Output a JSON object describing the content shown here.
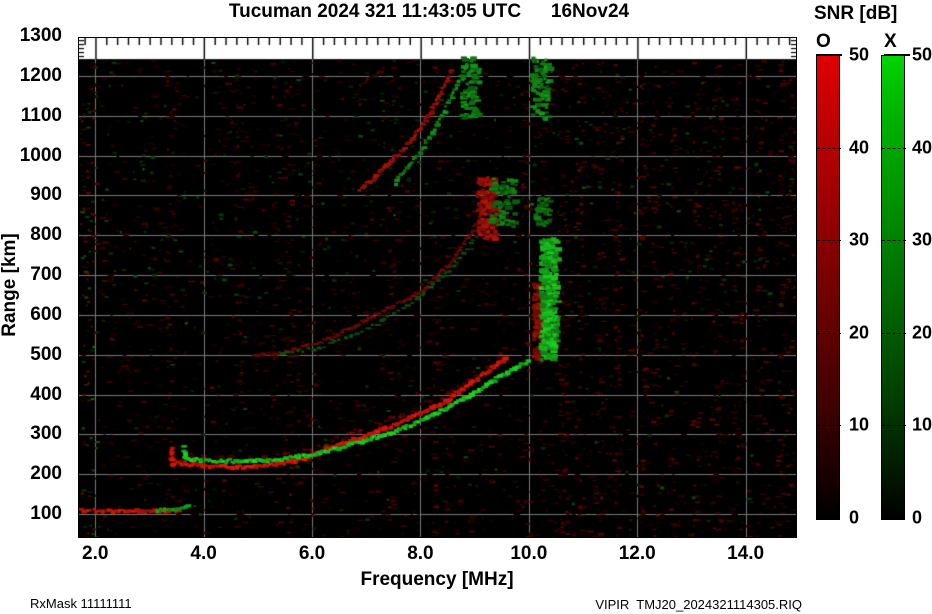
{
  "title": {
    "main": "Tucuman 2024 321 11:43:05 UTC",
    "date": "16Nov24"
  },
  "axes": {
    "x_label": "Frequency [MHz]",
    "y_label": "Range [km]",
    "x_ticks": [
      "2.0",
      "4.0",
      "6.0",
      "8.0",
      "10.0",
      "12.0",
      "14.0"
    ],
    "x_tick_values": [
      2,
      4,
      6,
      8,
      10,
      12,
      14
    ],
    "y_ticks": [
      100,
      200,
      300,
      400,
      500,
      600,
      700,
      800,
      900,
      1000,
      1100,
      1200,
      1300
    ],
    "x_range": [
      1.7,
      14.93
    ],
    "y_range": [
      42.5,
      1295
    ],
    "x_minor_step": 0.2,
    "y_edge_tick_step": 10,
    "grid": true
  },
  "footer": {
    "left": "RxMask 11111111",
    "right": "VIPIR  TMJ20_2024321114305.RIQ"
  },
  "colorbar": {
    "title": "SNR [dB]",
    "o_label": "O",
    "x_label": "X",
    "ticks": [
      50,
      40,
      30,
      20,
      10,
      0
    ],
    "min": 0,
    "max": 50
  },
  "colors": {
    "o_mode": "#e8190c",
    "x_mode": "#1edc23",
    "background": "#000000",
    "grid": "#7a7a7a"
  },
  "chart_data": {
    "type": "heatmap",
    "description": "VIPIR ionogram: echo SNR vs frequency and virtual range; O-mode red, X-mode green",
    "x_unit": "MHz",
    "y_unit": "km",
    "data_top_km": 1242,
    "traces": [
      {
        "name": "E-layer-O",
        "mode": "O",
        "intensity": 0.95,
        "h": 3,
        "step": 2.2,
        "points": [
          [
            1.7,
            112
          ],
          [
            2.6,
            111
          ],
          [
            3.3,
            112
          ],
          [
            3.55,
            114
          ]
        ]
      },
      {
        "name": "E-layer-X",
        "mode": "X",
        "intensity": 0.8,
        "h": 3,
        "step": 2.5,
        "points": [
          [
            3.12,
            114
          ],
          [
            3.45,
            115
          ],
          [
            3.68,
            124
          ]
        ]
      },
      {
        "name": "F-hop1-O",
        "mode": "O",
        "intensity": 1.0,
        "h": 3,
        "step": 2.0,
        "halo": true,
        "points": [
          [
            3.36,
            268
          ],
          [
            3.38,
            228
          ],
          [
            3.55,
            232
          ],
          [
            4.0,
            224
          ],
          [
            4.6,
            221
          ],
          [
            5.1,
            226
          ],
          [
            5.65,
            236
          ],
          [
            6.1,
            258
          ],
          [
            6.55,
            282
          ],
          [
            7.0,
            303
          ],
          [
            7.5,
            328
          ],
          [
            8.0,
            360
          ],
          [
            8.45,
            388
          ],
          [
            8.8,
            424
          ],
          [
            9.1,
            452
          ],
          [
            9.35,
            477
          ],
          [
            9.55,
            497
          ]
        ]
      },
      {
        "name": "F-hop1-X",
        "mode": "X",
        "intensity": 1.0,
        "h": 3,
        "step": 2.0,
        "points": [
          [
            3.6,
            275
          ],
          [
            3.62,
            248
          ],
          [
            3.8,
            240
          ],
          [
            4.3,
            236
          ],
          [
            4.9,
            238
          ],
          [
            5.4,
            243
          ],
          [
            5.9,
            252
          ],
          [
            6.4,
            268
          ],
          [
            6.9,
            287
          ],
          [
            7.4,
            306
          ],
          [
            7.9,
            333
          ],
          [
            8.4,
            367
          ],
          [
            8.9,
            403
          ],
          [
            9.3,
            438
          ],
          [
            9.65,
            466
          ],
          [
            10.0,
            490
          ]
        ]
      },
      {
        "name": "F-hop2-O",
        "mode": "O",
        "intensity": 0.5,
        "h": 2.5,
        "step": 2.6,
        "points": [
          [
            4.9,
            500
          ],
          [
            5.5,
            511
          ],
          [
            6.0,
            529
          ],
          [
            6.5,
            557
          ],
          [
            7.0,
            594
          ],
          [
            7.5,
            628
          ],
          [
            8.0,
            663
          ],
          [
            8.5,
            731
          ],
          [
            8.8,
            790
          ],
          [
            9.05,
            840
          ],
          [
            9.3,
            932
          ]
        ]
      },
      {
        "name": "F-hop2-X",
        "mode": "X",
        "intensity": 0.42,
        "h": 2.5,
        "step": 5.5,
        "points": [
          [
            5.4,
            505
          ],
          [
            6.1,
            520
          ],
          [
            6.7,
            550
          ],
          [
            7.3,
            590
          ],
          [
            7.9,
            645
          ],
          [
            8.5,
            715
          ],
          [
            9.0,
            800
          ],
          [
            9.5,
            880
          ],
          [
            9.75,
            935
          ]
        ]
      },
      {
        "name": "F-hop3-O",
        "mode": "O",
        "intensity": 0.75,
        "h": 2.8,
        "step": 2.4,
        "points": [
          [
            6.85,
            915
          ],
          [
            7.3,
            975
          ],
          [
            7.8,
            1040
          ],
          [
            8.1,
            1100
          ],
          [
            8.35,
            1160
          ],
          [
            8.55,
            1220
          ]
        ]
      },
      {
        "name": "F-hop3-X",
        "mode": "X",
        "intensity": 0.7,
        "h": 2.8,
        "step": 3.0,
        "points": [
          [
            7.5,
            935
          ],
          [
            7.9,
            1000
          ],
          [
            8.3,
            1085
          ],
          [
            8.6,
            1165
          ],
          [
            8.85,
            1238
          ]
        ]
      },
      {
        "name": "faint-streak-O",
        "mode": "O",
        "intensity": 0.3,
        "h": 2.2,
        "step": 3.0,
        "points": [
          [
            6.87,
            1182
          ],
          [
            7.3,
            1222
          ]
        ]
      }
    ],
    "spread_columns": [
      {
        "name": "hop1-spread-O",
        "mode": "O",
        "f": [
          10.05,
          10.28
        ],
        "km": [
          495,
          685
        ],
        "count": 130,
        "intensity": 0.7
      },
      {
        "name": "hop1-spread-X",
        "mode": "X",
        "f": [
          10.18,
          10.48
        ],
        "km": [
          492,
          795
        ],
        "count": 300,
        "intensity": 0.95
      },
      {
        "name": "hop2-end-O",
        "mode": "O",
        "f": [
          9.02,
          9.38
        ],
        "km": [
          795,
          950
        ],
        "count": 110,
        "intensity": 0.8
      },
      {
        "name": "hop2-end-X",
        "mode": "X",
        "f": [
          9.25,
          9.7
        ],
        "km": [
          825,
          945
        ],
        "count": 60,
        "intensity": 0.65
      },
      {
        "name": "hop2-spread-top-X",
        "mode": "X",
        "f": [
          10.02,
          10.35
        ],
        "km": [
          1095,
          1250
        ],
        "count": 80,
        "intensity": 0.75
      },
      {
        "name": "hop2-spread-low-X",
        "mode": "X",
        "f": [
          10.02,
          10.35
        ],
        "km": [
          828,
          900
        ],
        "count": 35,
        "intensity": 0.6
      },
      {
        "name": "hop3-top-X",
        "mode": "X",
        "f": [
          8.72,
          9.05
        ],
        "km": [
          1090,
          1250
        ],
        "count": 70,
        "intensity": 0.7
      }
    ],
    "noise": {
      "red_count": 2600,
      "green_count": 520,
      "left_edge_count": 90,
      "right_edge_count": 60,
      "stripes": [
        [
          10.62,
          70
        ],
        [
          10.92,
          50
        ],
        [
          11.3,
          40
        ],
        [
          11.62,
          60
        ],
        [
          12.05,
          45
        ],
        [
          12.32,
          40
        ],
        [
          12.62,
          50
        ],
        [
          13.05,
          40
        ],
        [
          13.45,
          45
        ],
        [
          13.82,
          40
        ],
        [
          14.25,
          45
        ],
        [
          14.62,
          40
        ],
        [
          9.92,
          35
        ],
        [
          8.3,
          30
        ],
        [
          7.45,
          25
        ],
        [
          6.02,
          30
        ],
        [
          5.55,
          35
        ],
        [
          5.3,
          30
        ],
        [
          4.62,
          25
        ],
        [
          3.35,
          30
        ]
      ]
    }
  }
}
